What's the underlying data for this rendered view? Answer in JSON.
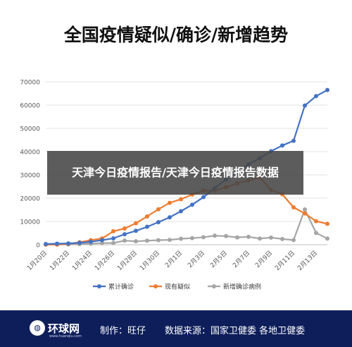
{
  "header": {
    "title": "全国疫情疑似/确诊/新增趋势"
  },
  "overlay": {
    "text": "天津今日疫情报告/天津今日疫情报告数据"
  },
  "footer": {
    "logo_text": "环球网",
    "logo_sub": "www.huanqiu.com",
    "maker": "制作：旺仔",
    "source": "数据来源：国家卫健委 各地卫健委"
  },
  "colors": {
    "series1": "#4472c4",
    "series2": "#ed7d31",
    "series3": "#a5a5a5",
    "footer_bg": "#0e1e5a"
  },
  "chart_data": {
    "type": "line",
    "title": "全国疫情疑似/确诊/新增趋势",
    "ylim": [
      0,
      70000
    ],
    "yticks": [
      "0",
      "10000",
      "20000",
      "30000",
      "40000",
      "50000",
      "60000",
      "70000"
    ],
    "x": [
      "1月20日",
      "1月21日",
      "1月22日",
      "1月23日",
      "1月24日",
      "1月25日",
      "1月26日",
      "1月27日",
      "1月28日",
      "1月29日",
      "1月30日",
      "1月31日",
      "2月1日",
      "2月2日",
      "2月3日",
      "2月4日",
      "2月5日",
      "2月6日",
      "2月7日",
      "2月8日",
      "2月9日",
      "2月10日",
      "2月11日",
      "2月12日",
      "2月13日",
      "2月14日"
    ],
    "xtick_labels": [
      "1月20日",
      "1月22日",
      "1月24日",
      "1月26日",
      "1月28日",
      "1月30日",
      "2月1日",
      "2月3日",
      "2月5日",
      "2月7日",
      "2月9日",
      "2月11日",
      "2月13日"
    ],
    "legend_position": "bottom",
    "series": [
      {
        "name": "累计确诊",
        "values": [
          291,
          440,
          571,
          830,
          1287,
          1975,
          2744,
          4515,
          5974,
          7711,
          9692,
          11791,
          14380,
          17205,
          20438,
          24324,
          28018,
          31161,
          34546,
          37198,
          40171,
          42638,
          44653,
          59804,
          63851,
          66492
        ]
      },
      {
        "name": "现有疑似",
        "values": [
          54,
          37,
          393,
          1072,
          1965,
          2684,
          5794,
          6973,
          9239,
          12167,
          15238,
          17988,
          19544,
          21558,
          23214,
          23260,
          24702,
          26359,
          27657,
          28942,
          23589,
          21675,
          16067,
          13435,
          10109,
          8969
        ]
      },
      {
        "name": "新增确诊病例",
        "values": [
          77,
          149,
          131,
          259,
          444,
          688,
          769,
          1771,
          1459,
          1737,
          1982,
          2102,
          2590,
          2829,
          3235,
          3887,
          3694,
          3143,
          3399,
          2656,
          3062,
          2478,
          2015,
          15152,
          5090,
          2641
        ]
      }
    ]
  }
}
